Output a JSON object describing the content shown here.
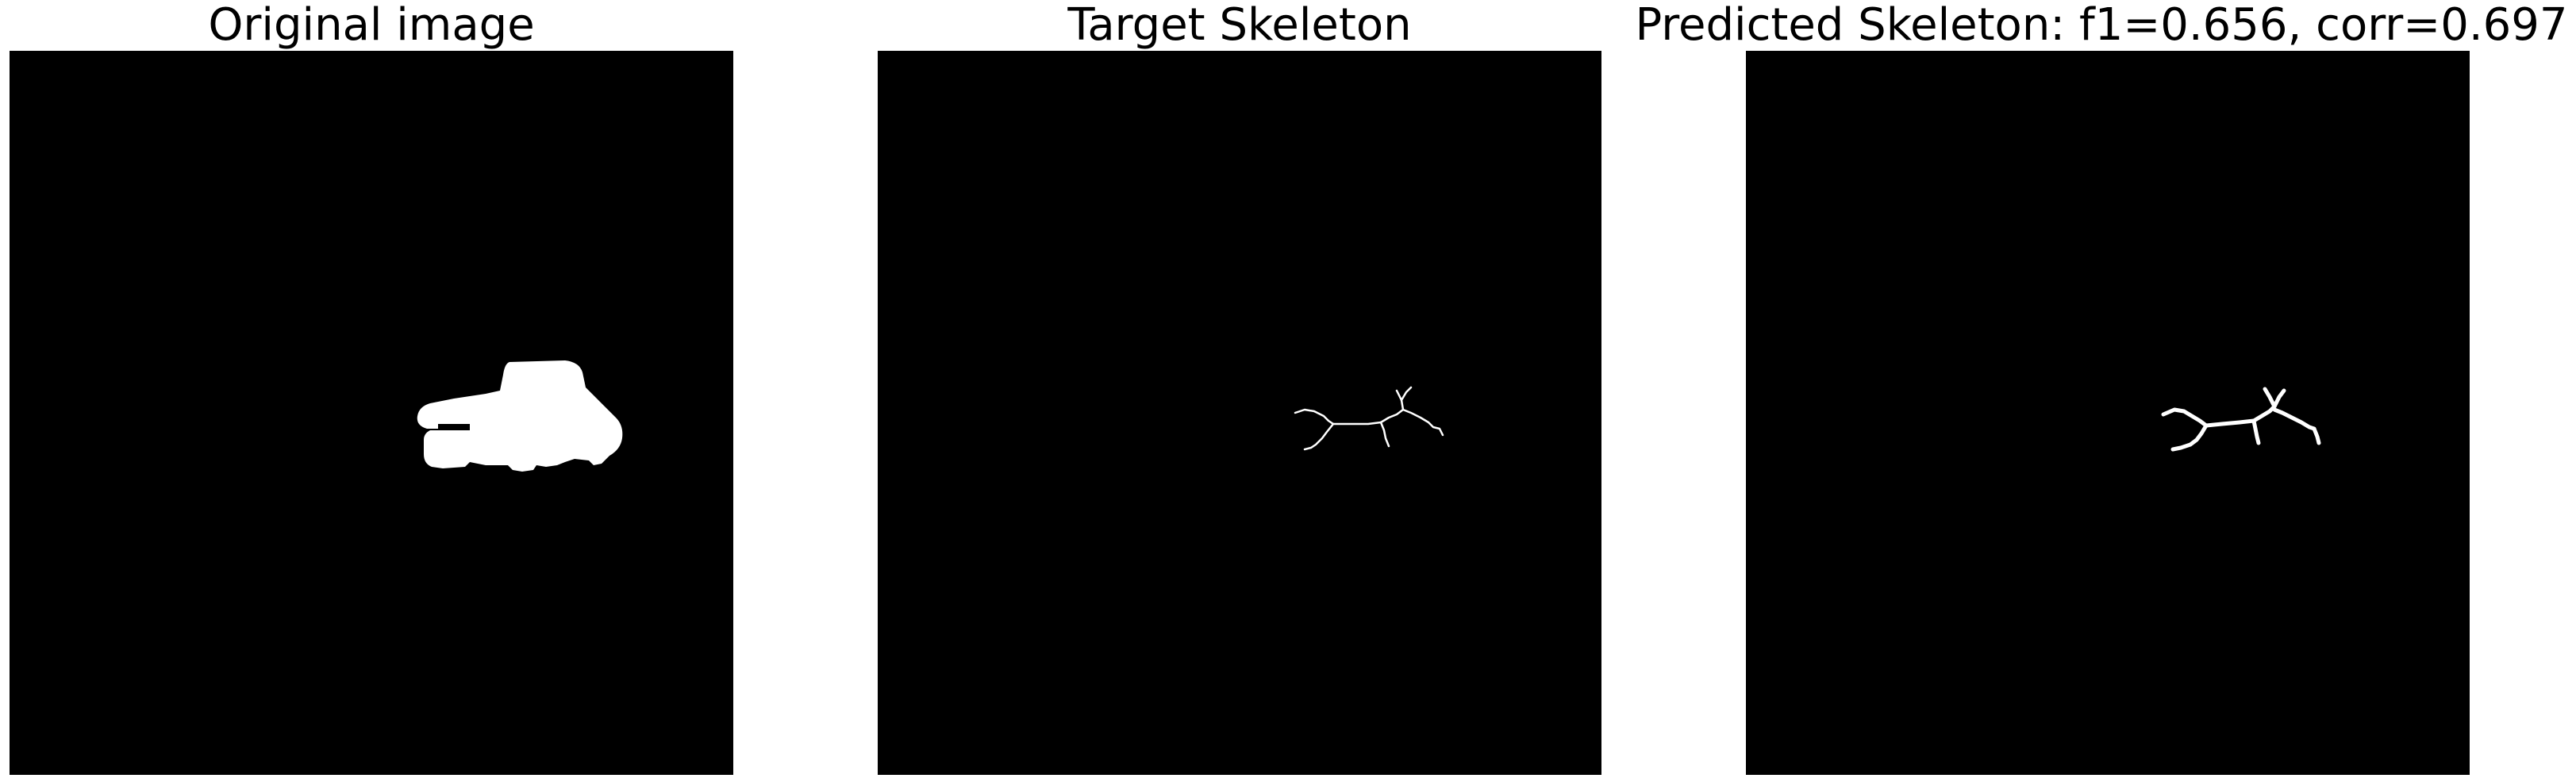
{
  "panels": [
    {
      "title": "Original image"
    },
    {
      "title": "Target Skeleton"
    },
    {
      "title": "Predicted Skeleton: f1=0.656, corr=0.697"
    }
  ],
  "colors": {
    "background": "#000000",
    "foreground": "#ffffff",
    "page": "#ffffff"
  }
}
